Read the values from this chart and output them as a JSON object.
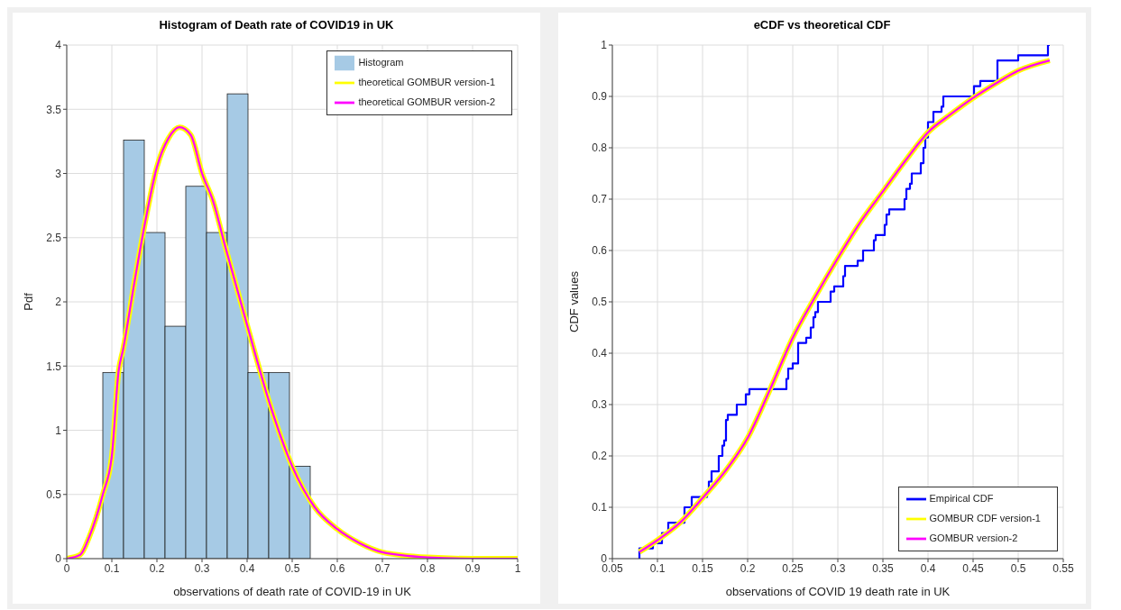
{
  "chart_data": [
    {
      "type": "histogram",
      "title": "Histogram of Death rate of COVID19 in UK",
      "xlabel": "observations of death rate of COVID-19 in UK",
      "ylabel": "Pdf",
      "bins": [
        0.08,
        0.126,
        0.172,
        0.218,
        0.264,
        0.31,
        0.356,
        0.402,
        0.448,
        0.494,
        0.54
      ],
      "series": [
        {
          "name": "Histogram",
          "color": "#a6cae5",
          "values": [
            1.45,
            3.26,
            2.54,
            1.81,
            2.9,
            2.54,
            3.62,
            1.45,
            1.45,
            0.72
          ]
        },
        {
          "type": "line",
          "name": "theoretical GOMBUR version-1",
          "color": "#ffff00",
          "x": [
            0,
            0.03,
            0.05,
            0.08,
            0.1,
            0.115,
            0.125,
            0.15,
            0.175,
            0.2,
            0.225,
            0.25,
            0.275,
            0.3,
            0.325,
            0.35,
            0.4,
            0.45,
            0.5,
            0.55,
            0.6,
            0.65,
            0.7,
            0.8,
            0.9,
            1
          ],
          "values": [
            0,
            0.03,
            0.17,
            0.5,
            0.8,
            1.46,
            1.63,
            2.15,
            2.64,
            3.05,
            3.27,
            3.36,
            3.3,
            3,
            2.78,
            2.45,
            1.82,
            1.21,
            0.72,
            0.4,
            0.23,
            0.12,
            0.05,
            0.01,
            0,
            0
          ]
        },
        {
          "type": "line",
          "name": "theoretical GOMBUR version-2",
          "color": "#ff00ff",
          "x": [
            0,
            0.03,
            0.05,
            0.08,
            0.1,
            0.115,
            0.125,
            0.15,
            0.175,
            0.2,
            0.225,
            0.25,
            0.275,
            0.3,
            0.325,
            0.35,
            0.4,
            0.45,
            0.5,
            0.55,
            0.6,
            0.65,
            0.7,
            0.8,
            0.9,
            1
          ],
          "values": [
            0,
            0.03,
            0.17,
            0.5,
            0.8,
            1.46,
            1.63,
            2.15,
            2.64,
            3.05,
            3.27,
            3.36,
            3.3,
            3,
            2.78,
            2.45,
            1.82,
            1.21,
            0.72,
            0.4,
            0.23,
            0.12,
            0.05,
            0.01,
            0,
            0
          ]
        }
      ],
      "xlim": [
        0,
        1
      ],
      "xticks": [
        0,
        0.1,
        0.2,
        0.3,
        0.4,
        0.5,
        0.6,
        0.7,
        0.8,
        0.9,
        1
      ],
      "ylim": [
        0,
        4
      ],
      "yticks": [
        0,
        0.5,
        1,
        1.5,
        2,
        2.5,
        3,
        3.5,
        4
      ],
      "grid": true,
      "legend": "top right"
    },
    {
      "type": "line",
      "title": "eCDF vs theoretical CDF",
      "xlabel": "observations of COVID 19 death rate in UK",
      "ylabel": "CDF values",
      "series": [
        {
          "type": "step",
          "name": "Empirical CDF",
          "color": "#0000ff",
          "x": [
            0.08,
            0.08,
            0.095,
            0.105,
            0.112,
            0.13,
            0.138,
            0.155,
            0.157,
            0.16,
            0.168,
            0.172,
            0.174,
            0.176,
            0.178,
            0.188,
            0.198,
            0.202,
            0.243,
            0.245,
            0.25,
            0.256,
            0.265,
            0.27,
            0.273,
            0.275,
            0.278,
            0.292,
            0.296,
            0.306,
            0.308,
            0.322,
            0.328,
            0.34,
            0.342,
            0.352,
            0.354,
            0.357,
            0.374,
            0.376,
            0.38,
            0.382,
            0.392,
            0.395,
            0.397,
            0.4,
            0.406,
            0.415,
            0.417,
            0.451,
            0.458,
            0.477,
            0.5,
            0.533,
            0.535
          ],
          "values": [
            0,
            0.02,
            0.03,
            0.05,
            0.07,
            0.1,
            0.12,
            0.13,
            0.15,
            0.17,
            0.2,
            0.22,
            0.23,
            0.27,
            0.28,
            0.3,
            0.32,
            0.33,
            0.35,
            0.37,
            0.38,
            0.42,
            0.43,
            0.45,
            0.47,
            0.48,
            0.5,
            0.52,
            0.53,
            0.55,
            0.57,
            0.58,
            0.6,
            0.62,
            0.63,
            0.65,
            0.67,
            0.68,
            0.7,
            0.72,
            0.73,
            0.75,
            0.77,
            0.8,
            0.82,
            0.85,
            0.87,
            0.88,
            0.9,
            0.92,
            0.93,
            0.97,
            0.98,
            1,
            1
          ]
        },
        {
          "name": "GOMBUR CDF version-1",
          "color": "#ffff00",
          "x": [
            0.08,
            0.1,
            0.125,
            0.15,
            0.175,
            0.2,
            0.225,
            0.25,
            0.275,
            0.3,
            0.325,
            0.35,
            0.375,
            0.4,
            0.425,
            0.45,
            0.475,
            0.5,
            0.535
          ],
          "values": [
            0.013,
            0.036,
            0.07,
            0.118,
            0.17,
            0.235,
            0.33,
            0.43,
            0.51,
            0.585,
            0.655,
            0.715,
            0.775,
            0.83,
            0.865,
            0.897,
            0.925,
            0.95,
            0.97
          ]
        },
        {
          "name": "GOMBUR version-2",
          "color": "#ff00ff",
          "x": [
            0.08,
            0.1,
            0.125,
            0.15,
            0.175,
            0.2,
            0.225,
            0.25,
            0.275,
            0.3,
            0.325,
            0.35,
            0.375,
            0.4,
            0.425,
            0.45,
            0.475,
            0.5,
            0.535
          ],
          "values": [
            0.013,
            0.036,
            0.07,
            0.118,
            0.17,
            0.235,
            0.33,
            0.43,
            0.51,
            0.585,
            0.655,
            0.715,
            0.775,
            0.83,
            0.865,
            0.897,
            0.925,
            0.95,
            0.97
          ]
        }
      ],
      "xlim": [
        0.05,
        0.55
      ],
      "xticks": [
        0.05,
        0.1,
        0.15,
        0.2,
        0.25,
        0.3,
        0.35,
        0.4,
        0.45,
        0.5,
        0.55
      ],
      "ylim": [
        0,
        1
      ],
      "yticks": [
        0,
        0.1,
        0.2,
        0.3,
        0.4,
        0.5,
        0.6,
        0.7,
        0.8,
        0.9,
        1
      ],
      "grid": true,
      "legend": "bottom right"
    }
  ]
}
